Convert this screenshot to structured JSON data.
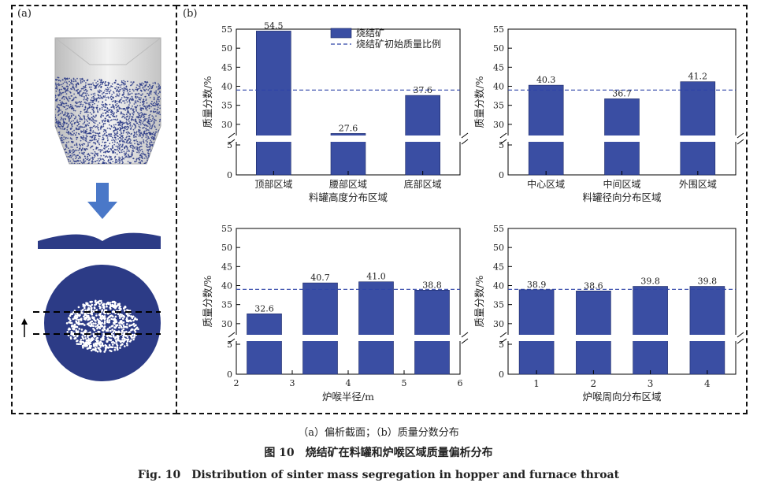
{
  "panel_a_label": "(a)",
  "panel_b_label": "(b)",
  "caption": {
    "sub": "（a）偏析截面；（b）质量分数分布",
    "cn": "图 10　烧结矿在料罐和炉喉区域质量偏析分布",
    "en": "Fig. 10　Distribution of sinter mass segregation in hopper and furnace throat"
  },
  "colors": {
    "bar": "#3a4ea3",
    "ref_line": "#2f44a8",
    "particle": "#2c3b86"
  },
  "legend": {
    "bar_label": "烧结矿",
    "line_label": "烧结矿初始质量比例"
  },
  "chart_data": [
    {
      "type": "bar",
      "categories": [
        "顶部区域",
        "腰部区域",
        "底部区域"
      ],
      "values": [
        54.5,
        27.6,
        37.6
      ],
      "data_labels": [
        "54.5",
        "27.6",
        "37.6"
      ],
      "xlabel": "料罐高度分布区域",
      "ylabel": "质量分数/%",
      "ylim": [
        0,
        55
      ],
      "axis_break": [
        5,
        25
      ],
      "yticks": [
        0,
        5,
        30,
        35,
        40,
        45,
        50,
        55
      ],
      "reference_line": 39,
      "legend_placement": "top-right"
    },
    {
      "type": "bar",
      "categories": [
        "中心区域",
        "中间区域",
        "外围区域"
      ],
      "values": [
        40.3,
        36.7,
        41.2
      ],
      "data_labels": [
        "40.3",
        "36.7",
        "41.2"
      ],
      "xlabel": "料罐径向分布区域",
      "ylabel": "质量分数/%",
      "ylim": [
        0,
        55
      ],
      "axis_break": [
        5,
        25
      ],
      "yticks": [
        0,
        5,
        30,
        35,
        40,
        45,
        50,
        55
      ],
      "reference_line": 39
    },
    {
      "type": "bar",
      "x": [
        2.5,
        3.5,
        4.5,
        5.5
      ],
      "values": [
        32.6,
        40.7,
        41.0,
        38.8
      ],
      "data_labels": [
        "32.6",
        "40.7",
        "41.0",
        "38.8"
      ],
      "xlabel": "炉喉半径/m",
      "xlim": [
        2,
        6
      ],
      "xticks": [
        "2",
        "3",
        "4",
        "5",
        "6"
      ],
      "ylabel": "质量分数/%",
      "ylim": [
        0,
        55
      ],
      "axis_break": [
        5,
        25
      ],
      "yticks": [
        0,
        5,
        30,
        35,
        40,
        45,
        50,
        55
      ],
      "reference_line": 39
    },
    {
      "type": "bar",
      "categories": [
        "1",
        "2",
        "3",
        "4"
      ],
      "values": [
        38.9,
        38.6,
        39.8,
        39.8
      ],
      "data_labels": [
        "38.9",
        "38.6",
        "39.8",
        "39.8"
      ],
      "xlabel": "炉喉周向分布区域",
      "ylabel": "质量分数/%",
      "ylim": [
        0,
        55
      ],
      "axis_break": [
        5,
        25
      ],
      "yticks": [
        0,
        5,
        30,
        35,
        40,
        45,
        50,
        55
      ],
      "reference_line": 39
    }
  ]
}
